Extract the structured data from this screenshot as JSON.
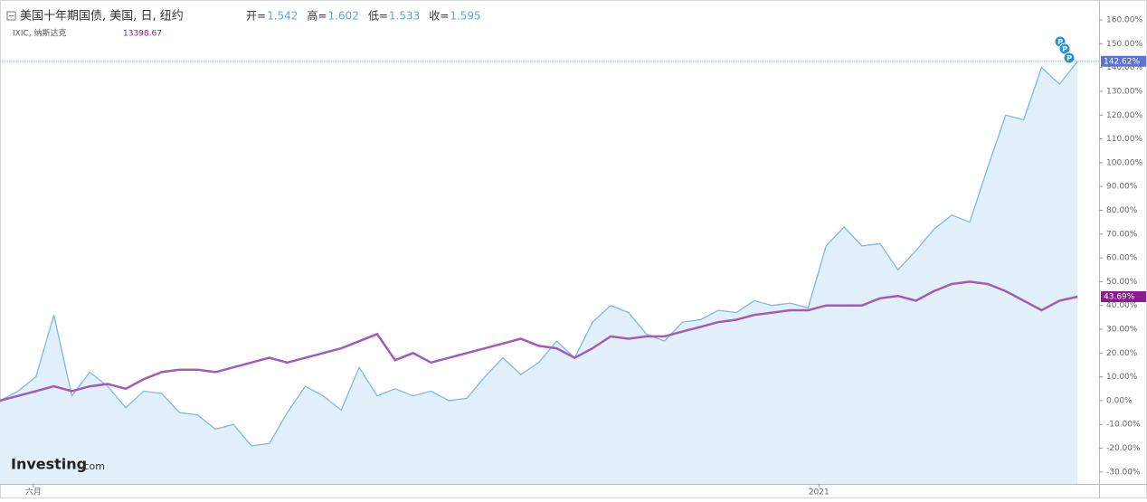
{
  "chart_data": {
    "type": "line",
    "header": {
      "ohlc": [
        {
          "label": "开=",
          "value": 1.542
        },
        {
          "label": "高=",
          "value": 1.602
        },
        {
          "label": "低=",
          "value": 1.533
        },
        {
          "label": "收=",
          "value": 1.595
        }
      ],
      "secondary_value": 13398.67
    },
    "logo": {
      "brand": "Investing",
      "suffix": ".com"
    },
    "x": [
      0,
      1,
      2,
      3,
      4,
      5,
      6,
      7,
      8,
      9,
      10,
      11,
      12,
      13,
      14,
      15,
      16,
      17,
      18,
      19,
      20,
      21,
      22,
      23,
      24,
      25,
      26,
      27,
      28,
      29,
      30,
      31,
      32,
      33,
      34,
      35,
      36,
      37,
      38,
      39,
      40,
      41,
      42,
      43,
      44,
      45,
      46,
      47,
      48,
      49,
      50,
      51,
      52,
      53,
      54,
      55,
      56,
      57,
      58,
      59,
      60
    ],
    "xlim": [
      0,
      61.2
    ],
    "xticks": [
      {
        "value": 1.86,
        "label": "六月"
      },
      {
        "value": 45.6,
        "label": "2021"
      }
    ],
    "ylim": [
      -35,
      168
    ],
    "yticks": [
      {
        "value": -30,
        "label": "-30.00%"
      },
      {
        "value": -20,
        "label": "-20.00%"
      },
      {
        "value": -10,
        "label": "-10.00%"
      },
      {
        "value": 0,
        "label": "0.00%"
      },
      {
        "value": 10,
        "label": "10.00%"
      },
      {
        "value": 20,
        "label": "20.00%"
      },
      {
        "value": 30,
        "label": "30.00%"
      },
      {
        "value": 40,
        "label": "40.00%"
      },
      {
        "value": 50,
        "label": "50.00%"
      },
      {
        "value": 60,
        "label": "60.00%"
      },
      {
        "value": 70,
        "label": "70.00%"
      },
      {
        "value": 80,
        "label": "80.00%"
      },
      {
        "value": 90,
        "label": "90.00%"
      },
      {
        "value": 100,
        "label": "100.00%"
      },
      {
        "value": 110,
        "label": "110.00%"
      },
      {
        "value": 120,
        "label": "120.00%"
      },
      {
        "value": 130,
        "label": "130.00%"
      },
      {
        "value": 140,
        "label": "140.00%"
      },
      {
        "value": 150,
        "label": "150.00%"
      },
      {
        "value": 160,
        "label": "160.00%"
      }
    ],
    "series": [
      {
        "name": "美国十年期国债, 美国, 日, 纽约",
        "color": "#7fb8e6",
        "fill": "#e1f0fa",
        "values": [
          0,
          4,
          10,
          36,
          2,
          12,
          6,
          -3,
          4,
          3,
          -5,
          -6,
          -12,
          -10,
          -19,
          -18,
          -5,
          6,
          2,
          -4,
          14,
          2,
          5,
          2,
          4,
          0,
          1,
          10,
          18,
          11,
          16,
          25,
          18,
          33,
          40,
          37,
          28,
          25,
          33,
          34,
          38,
          37,
          42,
          40,
          41,
          39,
          65,
          73,
          65,
          66,
          55,
          63,
          72,
          78,
          75,
          98,
          120,
          118,
          140,
          133,
          142.62
        ],
        "value_labels": [
          null,
          null,
          null,
          null,
          null,
          null,
          null,
          null,
          null,
          null,
          null,
          null,
          null,
          null,
          null,
          null,
          null,
          null,
          null,
          null,
          null,
          null,
          null,
          null,
          null,
          null,
          null,
          null,
          null,
          null,
          null,
          null,
          null,
          null,
          null,
          null,
          null,
          null,
          null,
          null,
          null,
          null,
          null,
          null,
          null,
          null,
          null,
          null,
          null,
          null,
          null,
          null,
          null,
          null,
          null,
          null,
          null,
          null,
          null,
          null,
          "142.62%"
        ],
        "label_color": "#5b74d6"
      },
      {
        "name": "IXIC, 纳斯达克",
        "color": "#a25bb8",
        "values": [
          0,
          2,
          4,
          6,
          4,
          6,
          7,
          5,
          9,
          12,
          13,
          13,
          12,
          14,
          16,
          18,
          16,
          18,
          20,
          22,
          25,
          28,
          17,
          20,
          16,
          18,
          20,
          22,
          24,
          26,
          23,
          22,
          18,
          22,
          27,
          26,
          27,
          27,
          29,
          31,
          33,
          34,
          36,
          37,
          38,
          38,
          40,
          40,
          40,
          43,
          44,
          42,
          46,
          49,
          50,
          49,
          46,
          42,
          38,
          42,
          43.69
        ],
        "value_labels": [
          null,
          null,
          null,
          null,
          null,
          null,
          null,
          null,
          null,
          null,
          null,
          null,
          null,
          null,
          null,
          null,
          null,
          null,
          null,
          null,
          null,
          null,
          null,
          null,
          null,
          null,
          null,
          null,
          null,
          null,
          null,
          null,
          null,
          null,
          null,
          null,
          null,
          null,
          null,
          null,
          null,
          null,
          null,
          null,
          null,
          null,
          null,
          null,
          null,
          null,
          null,
          null,
          null,
          null,
          null,
          null,
          null,
          null,
          null,
          null,
          "43.69%"
        ],
        "label_color": "#8e1b8e"
      }
    ]
  }
}
